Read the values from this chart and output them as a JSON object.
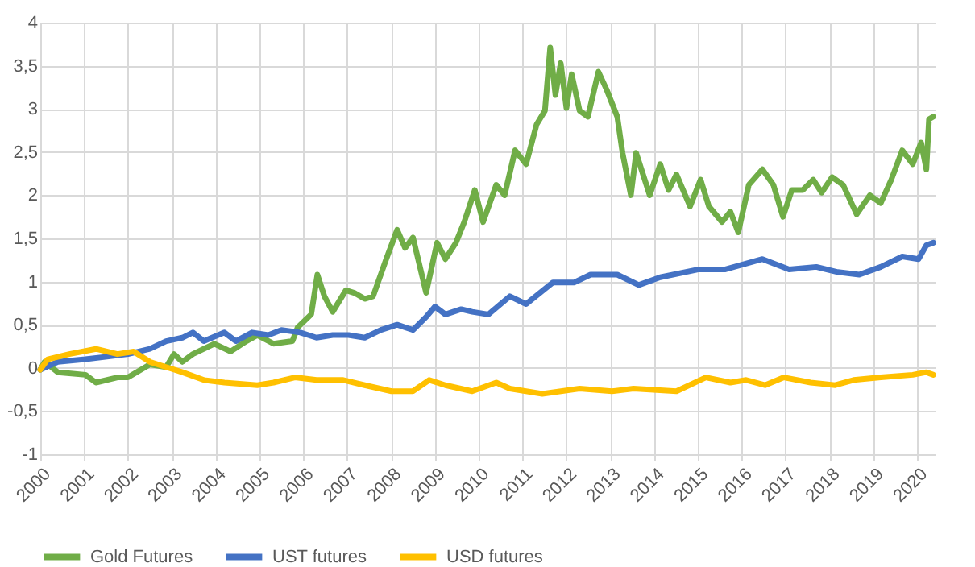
{
  "chart_data": {
    "type": "line",
    "xlim": [
      2000,
      2020.4
    ],
    "xticks": [
      2000,
      2001,
      2002,
      2003,
      2004,
      2005,
      2006,
      2007,
      2008,
      2009,
      2010,
      2011,
      2012,
      2013,
      2014,
      2015,
      2016,
      2017,
      2018,
      2019,
      2020
    ],
    "ylim": [
      -1,
      4
    ],
    "yticks": [
      {
        "value": -1,
        "label": "-1"
      },
      {
        "value": -0.5,
        "label": "-0,5"
      },
      {
        "value": 0,
        "label": "0"
      },
      {
        "value": 0.5,
        "label": "0,5"
      },
      {
        "value": 1,
        "label": "1"
      },
      {
        "value": 1.5,
        "label": "1,5"
      },
      {
        "value": 2,
        "label": "2"
      },
      {
        "value": 2.5,
        "label": "2,5"
      },
      {
        "value": 3,
        "label": "3"
      },
      {
        "value": 3.5,
        "label": "3,5"
      },
      {
        "value": 4,
        "label": "4"
      }
    ],
    "grid": true,
    "legend": "bottom",
    "line_style": "solid",
    "marker": "none",
    "series": [
      {
        "name": "Gold Futures",
        "color": "#70ad47",
        "x": [
          2000,
          2000.1,
          2000.4,
          2001.03,
          2001.27,
          2001.76,
          2002.0,
          2002.5,
          2002.87,
          2003.05,
          2003.24,
          2003.48,
          2003.97,
          2004.34,
          2004.7,
          2004.95,
          2005.32,
          2005.75,
          2005.87,
          2006.18,
          2006.32,
          2006.48,
          2006.67,
          2006.97,
          2007.16,
          2007.4,
          2007.59,
          2007.89,
          2008.14,
          2008.32,
          2008.5,
          2008.8,
          2009.05,
          2009.24,
          2009.48,
          2009.67,
          2009.91,
          2010.1,
          2010.4,
          2010.59,
          2010.83,
          2011.08,
          2011.32,
          2011.51,
          2011.63,
          2011.75,
          2011.87,
          2012.0,
          2012.12,
          2012.3,
          2012.49,
          2012.73,
          2012.92,
          2013.16,
          2013.28,
          2013.47,
          2013.59,
          2013.9,
          2014.14,
          2014.33,
          2014.51,
          2014.82,
          2015.06,
          2015.25,
          2015.55,
          2015.74,
          2015.92,
          2016.16,
          2016.47,
          2016.72,
          2016.94,
          2017.14,
          2017.39,
          2017.63,
          2017.82,
          2018.06,
          2018.31,
          2018.62,
          2018.92,
          2019.17,
          2019.41,
          2019.66,
          2019.9,
          2020.09,
          2020.21,
          2020.27,
          2020.37
        ],
        "values": [
          -0.02,
          0.07,
          -0.05,
          -0.08,
          -0.17,
          -0.11,
          -0.11,
          0.04,
          0.01,
          0.16,
          0.07,
          0.16,
          0.28,
          0.19,
          0.31,
          0.38,
          0.28,
          0.31,
          0.47,
          0.62,
          1.08,
          0.83,
          0.65,
          0.9,
          0.87,
          0.8,
          0.83,
          1.26,
          1.6,
          1.39,
          1.51,
          0.87,
          1.45,
          1.26,
          1.45,
          1.69,
          2.06,
          1.69,
          2.12,
          2.0,
          2.52,
          2.36,
          2.82,
          2.98,
          3.71,
          3.16,
          3.53,
          3.01,
          3.4,
          2.98,
          2.91,
          3.43,
          3.22,
          2.91,
          2.49,
          2.0,
          2.49,
          2.0,
          2.36,
          2.06,
          2.24,
          1.87,
          2.18,
          1.87,
          1.69,
          1.81,
          1.57,
          2.12,
          2.3,
          2.12,
          1.75,
          2.06,
          2.06,
          2.18,
          2.03,
          2.21,
          2.12,
          1.78,
          2.0,
          1.91,
          2.18,
          2.52,
          2.36,
          2.61,
          2.3,
          2.88,
          2.91
        ]
      },
      {
        "name": "UST futures",
        "color": "#4472c4",
        "x": [
          2000,
          2000.4,
          2001.03,
          2001.52,
          2002,
          2002.5,
          2002.87,
          2003.24,
          2003.48,
          2003.73,
          2004.2,
          2004.46,
          2004.83,
          2005.2,
          2005.5,
          2005.93,
          2006.3,
          2006.67,
          2007.03,
          2007.4,
          2007.77,
          2008.14,
          2008.5,
          2008.8,
          2009.0,
          2009.24,
          2009.6,
          2009.85,
          2010.22,
          2010.71,
          2011.08,
          2011.69,
          2012.18,
          2012.55,
          2013.16,
          2013.65,
          2014.14,
          2015.0,
          2015.61,
          2016.47,
          2017.08,
          2017.7,
          2018.19,
          2018.68,
          2019.17,
          2019.66,
          2020.03,
          2020.21,
          2020.37
        ],
        "values": [
          -0.02,
          0.07,
          0.1,
          0.13,
          0.16,
          0.22,
          0.31,
          0.35,
          0.41,
          0.31,
          0.41,
          0.31,
          0.41,
          0.38,
          0.44,
          0.41,
          0.35,
          0.38,
          0.38,
          0.35,
          0.44,
          0.5,
          0.44,
          0.59,
          0.71,
          0.62,
          0.68,
          0.65,
          0.62,
          0.83,
          0.74,
          0.99,
          0.99,
          1.08,
          1.08,
          0.96,
          1.05,
          1.14,
          1.14,
          1.26,
          1.14,
          1.17,
          1.11,
          1.08,
          1.17,
          1.29,
          1.26,
          1.42,
          1.45
        ]
      },
      {
        "name": "USD futures",
        "color": "#ffc000",
        "x": [
          2000,
          2000.17,
          2000.66,
          2001.27,
          2001.76,
          2002.13,
          2002.5,
          2002.87,
          2003.24,
          2003.73,
          2004.2,
          2004.95,
          2005.32,
          2005.81,
          2006.3,
          2006.91,
          2007.4,
          2008.01,
          2008.5,
          2008.87,
          2009.24,
          2009.85,
          2010.4,
          2010.71,
          2011.45,
          2012.3,
          2013.04,
          2013.53,
          2014.51,
          2015.18,
          2015.74,
          2016.1,
          2016.53,
          2016.96,
          2017.57,
          2018.13,
          2018.55,
          2019.17,
          2019.9,
          2020.21,
          2020.37
        ],
        "values": [
          -0.02,
          0.1,
          0.16,
          0.22,
          0.16,
          0.19,
          0.07,
          0.01,
          -0.05,
          -0.14,
          -0.17,
          -0.2,
          -0.17,
          -0.11,
          -0.14,
          -0.14,
          -0.2,
          -0.27,
          -0.27,
          -0.14,
          -0.2,
          -0.27,
          -0.17,
          -0.24,
          -0.3,
          -0.24,
          -0.27,
          -0.24,
          -0.27,
          -0.11,
          -0.17,
          -0.14,
          -0.2,
          -0.11,
          -0.17,
          -0.2,
          -0.14,
          -0.11,
          -0.08,
          -0.05,
          -0.08
        ]
      }
    ]
  }
}
